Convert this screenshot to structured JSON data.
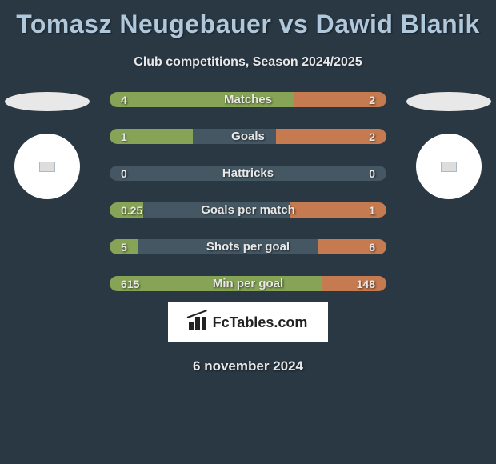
{
  "title": "Tomasz Neugebauer vs Dawid Blanik",
  "subtitle": "Club competitions, Season 2024/2025",
  "date": "6 november 2024",
  "logo_text": "FcTables.com",
  "colors": {
    "background": "#2a3844",
    "title": "#b0c8db",
    "bar_left": "#87a456",
    "bar_right": "#c67a4f",
    "bar_bg": "#445763"
  },
  "stats": [
    {
      "label": "Matches",
      "left_val": "4",
      "right_val": "2",
      "left_pct": 66.7,
      "right_pct": 33.3
    },
    {
      "label": "Goals",
      "left_val": "1",
      "right_val": "2",
      "left_pct": 30.0,
      "right_pct": 40.0
    },
    {
      "label": "Hattricks",
      "left_val": "0",
      "right_val": "0",
      "left_pct": 0.0,
      "right_pct": 0.0
    },
    {
      "label": "Goals per match",
      "left_val": "0.25",
      "right_val": "1",
      "left_pct": 12.0,
      "right_pct": 35.0
    },
    {
      "label": "Shots per goal",
      "left_val": "5",
      "right_val": "6",
      "left_pct": 10.0,
      "right_pct": 25.0
    },
    {
      "label": "Min per goal",
      "left_val": "615",
      "right_val": "148",
      "left_pct": 77.0,
      "right_pct": 23.0
    }
  ]
}
